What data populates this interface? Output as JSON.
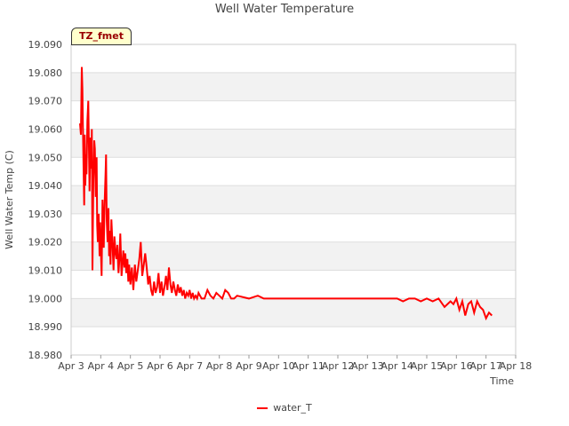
{
  "chart_data": {
    "type": "line",
    "title": "Well Water Temperature",
    "badge": "TZ_fmet",
    "xlabel": "Time",
    "ylabel": "Well Water Temp (C)",
    "ylim": [
      18.98,
      19.09
    ],
    "xlim": [
      3,
      18
    ],
    "yticks": [
      "18.980",
      "18.990",
      "19.000",
      "19.010",
      "19.020",
      "19.030",
      "19.040",
      "19.050",
      "19.060",
      "19.070",
      "19.080",
      "19.090"
    ],
    "xticks": [
      "Apr 3",
      "Apr 4",
      "Apr 5",
      "Apr 6",
      "Apr 7",
      "Apr 8",
      "Apr 9",
      "Apr 10",
      "Apr 11",
      "Apr 12",
      "Apr 13",
      "Apr 14",
      "Apr 15",
      "Apr 16",
      "Apr 17",
      "Apr 18"
    ],
    "series": [
      {
        "name": "water_T",
        "color": "#ff0000",
        "x": [
          3.3,
          3.33,
          3.36,
          3.38,
          3.4,
          3.42,
          3.44,
          3.46,
          3.48,
          3.5,
          3.52,
          3.55,
          3.58,
          3.62,
          3.65,
          3.68,
          3.7,
          3.72,
          3.75,
          3.78,
          3.8,
          3.83,
          3.86,
          3.88,
          3.9,
          3.93,
          3.96,
          3.98,
          4.0,
          4.03,
          4.06,
          4.08,
          4.1,
          4.13,
          4.16,
          4.18,
          4.2,
          4.23,
          4.26,
          4.28,
          4.3,
          4.33,
          4.36,
          4.4,
          4.43,
          4.46,
          4.5,
          4.53,
          4.56,
          4.6,
          4.63,
          4.66,
          4.7,
          4.73,
          4.76,
          4.8,
          4.83,
          4.86,
          4.9,
          4.93,
          4.96,
          5.0,
          5.05,
          5.1,
          5.15,
          5.2,
          5.25,
          5.3,
          5.35,
          5.4,
          5.45,
          5.5,
          5.55,
          5.6,
          5.65,
          5.7,
          5.75,
          5.8,
          5.85,
          5.9,
          5.95,
          6.0,
          6.05,
          6.1,
          6.15,
          6.2,
          6.25,
          6.3,
          6.35,
          6.4,
          6.45,
          6.5,
          6.55,
          6.6,
          6.65,
          6.7,
          6.75,
          6.8,
          6.85,
          6.9,
          6.95,
          7.0,
          7.05,
          7.1,
          7.15,
          7.2,
          7.25,
          7.3,
          7.35,
          7.4,
          7.5,
          7.6,
          7.7,
          7.8,
          7.9,
          8.0,
          8.1,
          8.2,
          8.3,
          8.4,
          8.5,
          8.6,
          9.0,
          9.3,
          9.5,
          10.0,
          11.0,
          12.0,
          13.0,
          14.0,
          14.2,
          14.4,
          14.6,
          14.8,
          15.0,
          15.2,
          15.4,
          15.6,
          15.8,
          15.9,
          16.0,
          16.1,
          16.2,
          16.3,
          16.4,
          16.5,
          16.6,
          16.7,
          16.8,
          16.9,
          17.0,
          17.1,
          17.2
        ],
        "values": [
          19.062,
          19.058,
          19.082,
          19.074,
          19.06,
          19.046,
          19.033,
          19.058,
          19.04,
          19.051,
          19.044,
          19.063,
          19.07,
          19.038,
          19.057,
          19.046,
          19.06,
          19.01,
          19.042,
          19.056,
          19.053,
          19.036,
          19.05,
          19.026,
          19.02,
          19.03,
          19.015,
          19.027,
          19.019,
          19.008,
          19.035,
          19.028,
          19.018,
          19.034,
          19.044,
          19.051,
          19.028,
          19.02,
          19.032,
          19.015,
          19.024,
          19.012,
          19.028,
          19.018,
          19.01,
          19.022,
          19.016,
          19.014,
          19.019,
          19.009,
          19.014,
          19.023,
          19.008,
          19.012,
          19.017,
          19.011,
          19.016,
          19.009,
          19.014,
          19.006,
          19.012,
          19.005,
          19.011,
          19.003,
          19.012,
          19.006,
          19.01,
          19.014,
          19.02,
          19.008,
          19.012,
          19.016,
          19.011,
          19.005,
          19.008,
          19.003,
          19.001,
          19.006,
          19.002,
          19.004,
          19.009,
          19.002,
          19.006,
          19.001,
          19.004,
          19.008,
          19.003,
          19.011,
          19.005,
          19.002,
          19.006,
          19.003,
          19.001,
          19.005,
          19.002,
          19.004,
          19.001,
          19.003,
          19.0,
          19.002,
          19.001,
          19.003,
          19.0,
          19.002,
          19.0,
          19.001,
          19.0,
          19.002,
          19.001,
          19.0,
          19.0,
          19.003,
          19.001,
          19.0,
          19.002,
          19.001,
          19.0,
          19.003,
          19.002,
          19.0,
          19.0,
          19.001,
          19.0,
          19.001,
          19.0,
          19.0,
          19.0,
          19.0,
          19.0,
          19.0,
          18.999,
          19.0,
          19.0,
          18.999,
          19.0,
          18.999,
          19.0,
          18.997,
          18.999,
          18.998,
          19.0,
          18.996,
          18.999,
          18.994,
          18.998,
          18.999,
          18.995,
          18.999,
          18.997,
          18.996,
          18.993,
          18.995,
          18.994
        ]
      }
    ]
  }
}
